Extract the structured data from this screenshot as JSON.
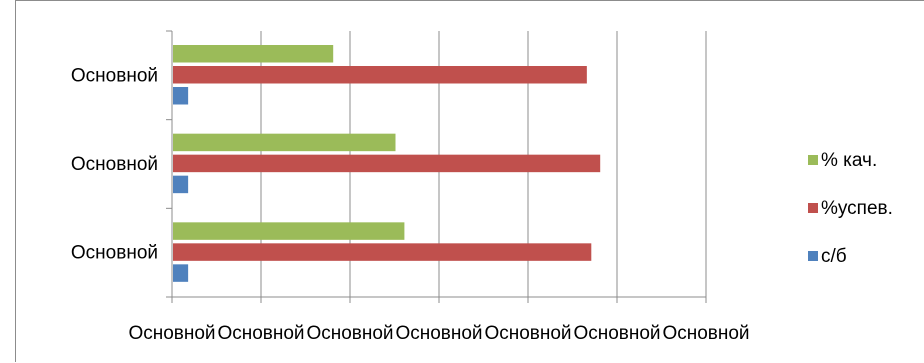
{
  "chart_data": {
    "type": "bar",
    "orientation": "horizontal",
    "categories": [
      "Основной",
      "Основной",
      "Основной"
    ],
    "series": [
      {
        "name": "% кач.",
        "color": "#9BBB59",
        "values": [
          26,
          25,
          18
        ]
      },
      {
        "name": "%успев.",
        "color": "#C0504D",
        "values": [
          47,
          48,
          46.5
        ]
      },
      {
        "name": "с/б",
        "color": "#4F81BD",
        "values": [
          1.7,
          1.7,
          1.7
        ]
      }
    ],
    "x_tick_labels": [
      "Основной",
      "Основной",
      "Основной",
      "Основной",
      "Основной",
      "Основной",
      "Основной"
    ],
    "xlim": [
      0,
      60
    ],
    "x_gridlines": [
      0,
      10,
      20,
      30,
      40,
      50,
      60
    ],
    "grid": true,
    "legend_placement": "right",
    "legend_order": [
      "% кач.",
      "%успев.",
      "с/б"
    ],
    "title": "",
    "xlabel": "",
    "ylabel": ""
  }
}
